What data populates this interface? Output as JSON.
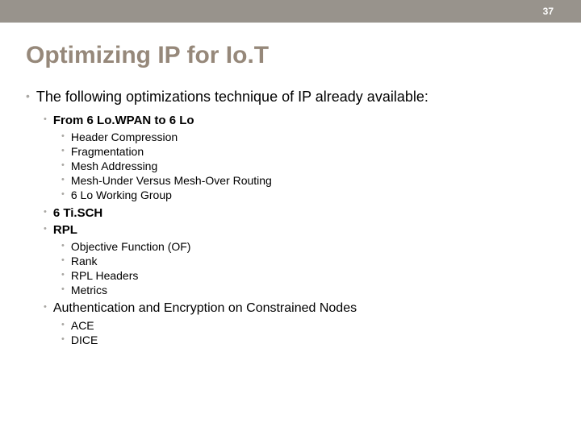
{
  "header": {
    "slide_number": "37",
    "bar_color": "#98938c",
    "text_color": "#ffffff"
  },
  "title": {
    "text": "Optimizing IP for Io.T",
    "color": "#96887a",
    "fontsize": 30
  },
  "bullet_color": "#a9a7a3",
  "content": {
    "level1_text": "The following optimizations technique of IP already available:",
    "sections": [
      {
        "heading": "From 6 Lo.WPAN to 6 Lo",
        "bold": true,
        "items": [
          "Header Compression",
          "Fragmentation",
          "Mesh Addressing",
          "Mesh-Under Versus Mesh-Over Routing",
          "6 Lo Working Group"
        ]
      },
      {
        "heading": "6 Ti.SCH",
        "bold": true,
        "items": []
      },
      {
        "heading": "RPL",
        "bold": true,
        "items": [
          "Objective Function (OF)",
          "Rank",
          "RPL Headers",
          "Metrics"
        ]
      },
      {
        "heading": "Authentication and Encryption on Constrained Nodes",
        "bold": false,
        "items": [
          "ACE",
          "DICE"
        ]
      }
    ]
  }
}
